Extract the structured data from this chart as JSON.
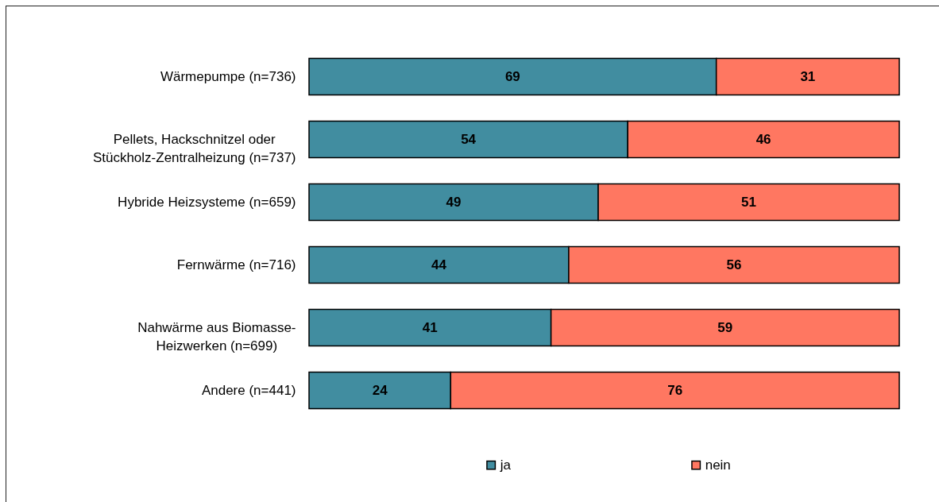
{
  "chart_data": {
    "type": "bar",
    "orientation": "horizontal",
    "stacked": true,
    "categories": [
      "Wärmepumpe (n=736)",
      "Pellets, Hackschnitzel oder\nStückholz-Zentralheizung (n=737)",
      "Hybride Heizsysteme (n=659)",
      "Fernwärme (n=716)",
      "Nahwärme aus Biomasse-\nHeizwerken (n=699)",
      "Andere (n=441)"
    ],
    "series": [
      {
        "name": "ja",
        "color": "#418da0",
        "values": [
          69,
          54,
          49,
          44,
          41,
          24
        ]
      },
      {
        "name": "nein",
        "color": "#ff7761",
        "values": [
          31,
          46,
          51,
          56,
          59,
          76
        ]
      }
    ],
    "data_labels": true,
    "legend": "bottom",
    "tick_labels": "y"
  }
}
